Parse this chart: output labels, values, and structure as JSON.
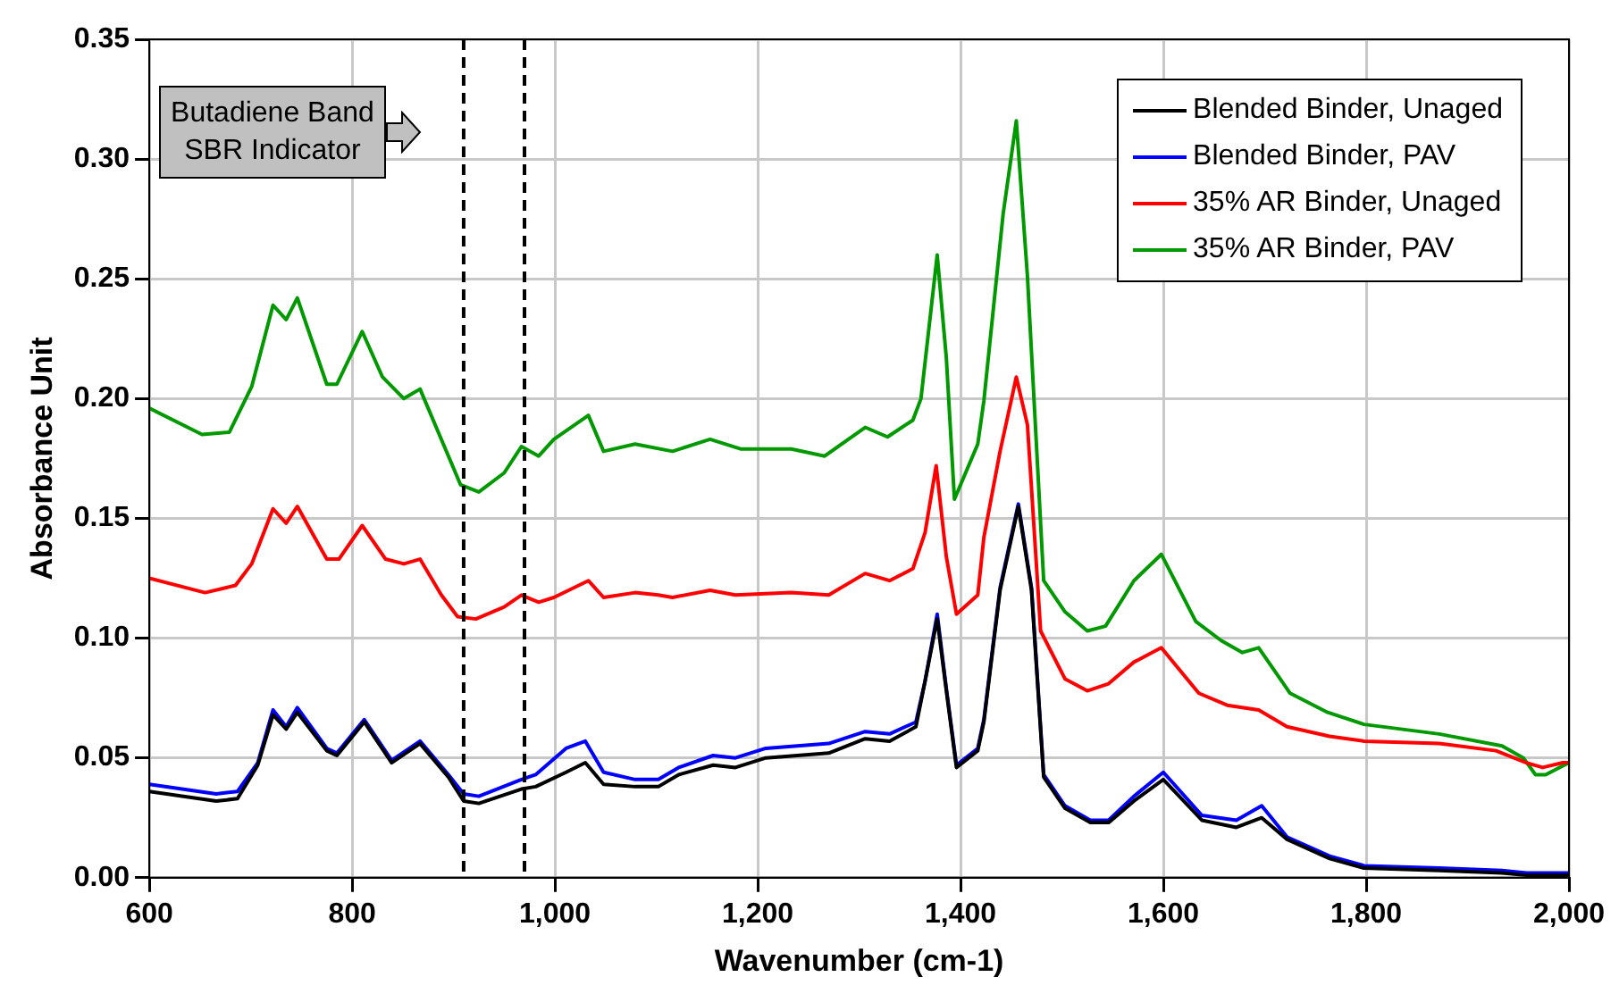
{
  "chart_data": {
    "type": "line",
    "xlabel": "Wavenumber (cm-1)",
    "ylabel": "Absorbance Unit",
    "xlim": [
      600,
      2000
    ],
    "ylim": [
      0,
      0.35
    ],
    "xticks": [
      600,
      800,
      {
        "value": 1000,
        "label": "1,000"
      },
      {
        "value": 1200,
        "label": "1,200"
      },
      {
        "value": 1400,
        "label": "1,400"
      },
      {
        "value": 1600,
        "label": "1,600"
      },
      {
        "value": 1800,
        "label": "1,800"
      },
      {
        "value": 2000,
        "label": "2,000"
      }
    ],
    "yticks": [
      {
        "value": 0,
        "label": "0.00"
      },
      {
        "value": 0.05,
        "label": "0.05"
      },
      {
        "value": 0.1,
        "label": "0.10"
      },
      {
        "value": 0.15,
        "label": "0.15"
      },
      {
        "value": 0.2,
        "label": "0.20"
      },
      {
        "value": 0.25,
        "label": "0.25"
      },
      {
        "value": 0.3,
        "label": "0.30"
      },
      {
        "value": 0.35,
        "label": "0.35"
      }
    ],
    "grid": true,
    "legend": "top right",
    "marker": "none",
    "line_style": "solid",
    "annotations": [
      "Butadiene Band\nSBR Indicator"
    ],
    "ref_lines": [
      {
        "axis": "x",
        "value": 910,
        "color": "#000000",
        "line_style": "dashed"
      },
      {
        "axis": "x",
        "value": 970,
        "color": "#000000",
        "line_style": "dashed"
      }
    ],
    "series": [
      {
        "name": "Blended Binder, Unaged",
        "color": "#000000",
        "x": [
          600,
          666,
          687,
          707,
          722,
          735,
          746,
          775,
          785,
          812,
          839,
          867,
          895,
          910,
          925,
          967,
          981,
          1011,
          1030,
          1048,
          1079,
          1102,
          1122,
          1156,
          1178,
          1208,
          1270,
          1306,
          1330,
          1356,
          1365,
          1377,
          1386,
          1396,
          1417,
          1423,
          1439,
          1457,
          1470,
          1482,
          1503,
          1528,
          1546,
          1571,
          1600,
          1638,
          1672,
          1697,
          1722,
          1764,
          1798,
          1872,
          1934,
          1958,
          2000
        ],
        "values": [
          0.036,
          0.032,
          0.033,
          0.047,
          0.068,
          0.062,
          0.069,
          0.053,
          0.051,
          0.065,
          0.048,
          0.056,
          0.042,
          0.032,
          0.031,
          0.037,
          0.038,
          0.044,
          0.048,
          0.039,
          0.038,
          0.038,
          0.043,
          0.047,
          0.046,
          0.05,
          0.052,
          0.058,
          0.057,
          0.063,
          0.082,
          0.108,
          0.078,
          0.046,
          0.053,
          0.065,
          0.12,
          0.155,
          0.12,
          0.042,
          0.029,
          0.023,
          0.023,
          0.032,
          0.041,
          0.024,
          0.021,
          0.025,
          0.016,
          0.008,
          0.004,
          0.003,
          0.002,
          0.001,
          0.001
        ]
      },
      {
        "name": "Blended Binder, PAV",
        "color": "#0000ff",
        "x": [
          600,
          666,
          687,
          707,
          722,
          735,
          746,
          775,
          785,
          812,
          839,
          867,
          895,
          910,
          925,
          967,
          981,
          1011,
          1030,
          1048,
          1079,
          1102,
          1122,
          1156,
          1178,
          1208,
          1270,
          1306,
          1330,
          1356,
          1365,
          1377,
          1386,
          1396,
          1417,
          1423,
          1439,
          1457,
          1470,
          1482,
          1503,
          1528,
          1546,
          1571,
          1600,
          1638,
          1672,
          1697,
          1722,
          1764,
          1798,
          1872,
          1934,
          1958,
          2000
        ],
        "values": [
          0.039,
          0.035,
          0.036,
          0.048,
          0.07,
          0.063,
          0.071,
          0.054,
          0.052,
          0.066,
          0.049,
          0.057,
          0.043,
          0.035,
          0.034,
          0.041,
          0.043,
          0.054,
          0.057,
          0.044,
          0.041,
          0.041,
          0.046,
          0.051,
          0.05,
          0.054,
          0.056,
          0.061,
          0.06,
          0.065,
          0.082,
          0.11,
          0.079,
          0.047,
          0.054,
          0.066,
          0.121,
          0.156,
          0.121,
          0.043,
          0.03,
          0.024,
          0.024,
          0.034,
          0.044,
          0.026,
          0.024,
          0.03,
          0.017,
          0.009,
          0.005,
          0.004,
          0.003,
          0.002,
          0.002
        ]
      },
      {
        "name": "35% AR Binder, Unaged",
        "color": "#ff0000",
        "x": [
          600,
          655,
          685,
          701,
          722,
          735,
          746,
          775,
          787,
          810,
          833,
          851,
          867,
          888,
          904,
          922,
          950,
          967,
          984,
          999,
          1033,
          1048,
          1079,
          1102,
          1116,
          1153,
          1178,
          1233,
          1270,
          1306,
          1330,
          1353,
          1365,
          1376,
          1386,
          1396,
          1417,
          1423,
          1439,
          1455,
          1466,
          1479,
          1503,
          1525,
          1546,
          1571,
          1598,
          1635,
          1663,
          1694,
          1722,
          1764,
          1798,
          1872,
          1928,
          1958,
          1974,
          1994,
          2000
        ],
        "values": [
          0.125,
          0.119,
          0.122,
          0.131,
          0.154,
          0.148,
          0.155,
          0.133,
          0.133,
          0.147,
          0.133,
          0.131,
          0.133,
          0.118,
          0.109,
          0.108,
          0.113,
          0.118,
          0.115,
          0.117,
          0.124,
          0.117,
          0.119,
          0.118,
          0.117,
          0.12,
          0.118,
          0.119,
          0.118,
          0.127,
          0.124,
          0.129,
          0.144,
          0.172,
          0.134,
          0.11,
          0.118,
          0.142,
          0.178,
          0.209,
          0.189,
          0.103,
          0.083,
          0.078,
          0.081,
          0.09,
          0.096,
          0.077,
          0.072,
          0.07,
          0.063,
          0.059,
          0.057,
          0.056,
          0.053,
          0.048,
          0.046,
          0.048,
          0.048
        ]
      },
      {
        "name": "35% AR Binder, PAV",
        "color": "#009900",
        "x": [
          600,
          652,
          679,
          701,
          722,
          735,
          746,
          775,
          785,
          810,
          830,
          851,
          867,
          888,
          907,
          925,
          950,
          967,
          984,
          999,
          1033,
          1048,
          1079,
          1116,
          1153,
          1183,
          1233,
          1266,
          1306,
          1328,
          1353,
          1361,
          1377,
          1386,
          1394,
          1417,
          1423,
          1442,
          1455,
          1466,
          1482,
          1503,
          1525,
          1543,
          1571,
          1598,
          1632,
          1657,
          1678,
          1694,
          1725,
          1762,
          1798,
          1872,
          1934,
          1955,
          1967,
          1977,
          2000
        ],
        "values": [
          0.196,
          0.185,
          0.186,
          0.205,
          0.239,
          0.233,
          0.242,
          0.206,
          0.206,
          0.228,
          0.209,
          0.2,
          0.204,
          0.183,
          0.164,
          0.161,
          0.169,
          0.18,
          0.176,
          0.183,
          0.193,
          0.178,
          0.181,
          0.178,
          0.183,
          0.179,
          0.179,
          0.176,
          0.188,
          0.184,
          0.191,
          0.2,
          0.26,
          0.217,
          0.158,
          0.181,
          0.199,
          0.277,
          0.316,
          0.251,
          0.124,
          0.111,
          0.103,
          0.105,
          0.124,
          0.135,
          0.107,
          0.099,
          0.094,
          0.096,
          0.077,
          0.069,
          0.064,
          0.06,
          0.055,
          0.05,
          0.043,
          0.043,
          0.048
        ]
      }
    ]
  }
}
